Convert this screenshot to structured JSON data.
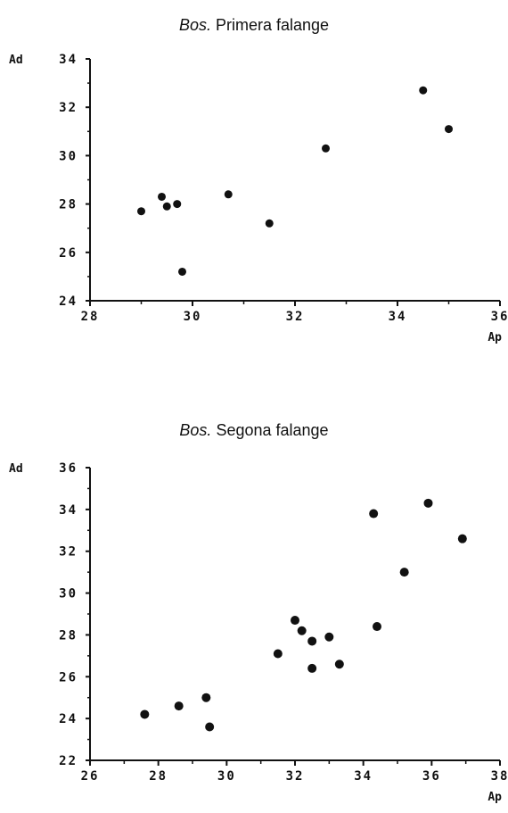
{
  "chart_data": [
    {
      "type": "scatter",
      "title_italic": "Bos.",
      "title_rest": "Primera falange",
      "xlabel": "Ap",
      "ylabel": "Ad",
      "xlim": [
        28,
        36
      ],
      "ylim": [
        24,
        34
      ],
      "xticks": [
        "28",
        "30",
        "32",
        "34",
        "36"
      ],
      "yticks": [
        "24",
        "26",
        "28",
        "30",
        "32",
        "34"
      ],
      "grid": false,
      "points": [
        {
          "x": 29.0,
          "y": 27.7
        },
        {
          "x": 29.4,
          "y": 28.3
        },
        {
          "x": 29.5,
          "y": 27.9
        },
        {
          "x": 29.7,
          "y": 28.0
        },
        {
          "x": 29.8,
          "y": 25.2
        },
        {
          "x": 30.7,
          "y": 28.4
        },
        {
          "x": 31.5,
          "y": 27.2
        },
        {
          "x": 32.6,
          "y": 30.3
        },
        {
          "x": 34.5,
          "y": 32.7
        },
        {
          "x": 35.0,
          "y": 31.1
        }
      ]
    },
    {
      "type": "scatter",
      "title_italic": "Bos.",
      "title_rest": "Segona falange",
      "xlabel": "Ap",
      "ylabel": "Ad",
      "xlim": [
        26,
        38
      ],
      "ylim": [
        22,
        36
      ],
      "xticks": [
        "26",
        "28",
        "30",
        "32",
        "34",
        "36",
        "38"
      ],
      "yticks": [
        "22",
        "24",
        "26",
        "28",
        "30",
        "32",
        "34",
        "36"
      ],
      "grid": false,
      "points": [
        {
          "x": 27.6,
          "y": 24.2
        },
        {
          "x": 28.6,
          "y": 24.6
        },
        {
          "x": 29.4,
          "y": 25.0
        },
        {
          "x": 29.5,
          "y": 23.6
        },
        {
          "x": 31.5,
          "y": 27.1
        },
        {
          "x": 32.0,
          "y": 28.7
        },
        {
          "x": 32.2,
          "y": 28.2
        },
        {
          "x": 32.5,
          "y": 27.7
        },
        {
          "x": 32.5,
          "y": 26.4
        },
        {
          "x": 33.0,
          "y": 27.9
        },
        {
          "x": 33.3,
          "y": 26.6
        },
        {
          "x": 34.3,
          "y": 33.8
        },
        {
          "x": 34.4,
          "y": 28.4
        },
        {
          "x": 35.2,
          "y": 31.0
        },
        {
          "x": 35.9,
          "y": 34.3
        },
        {
          "x": 36.9,
          "y": 32.6
        }
      ]
    }
  ]
}
